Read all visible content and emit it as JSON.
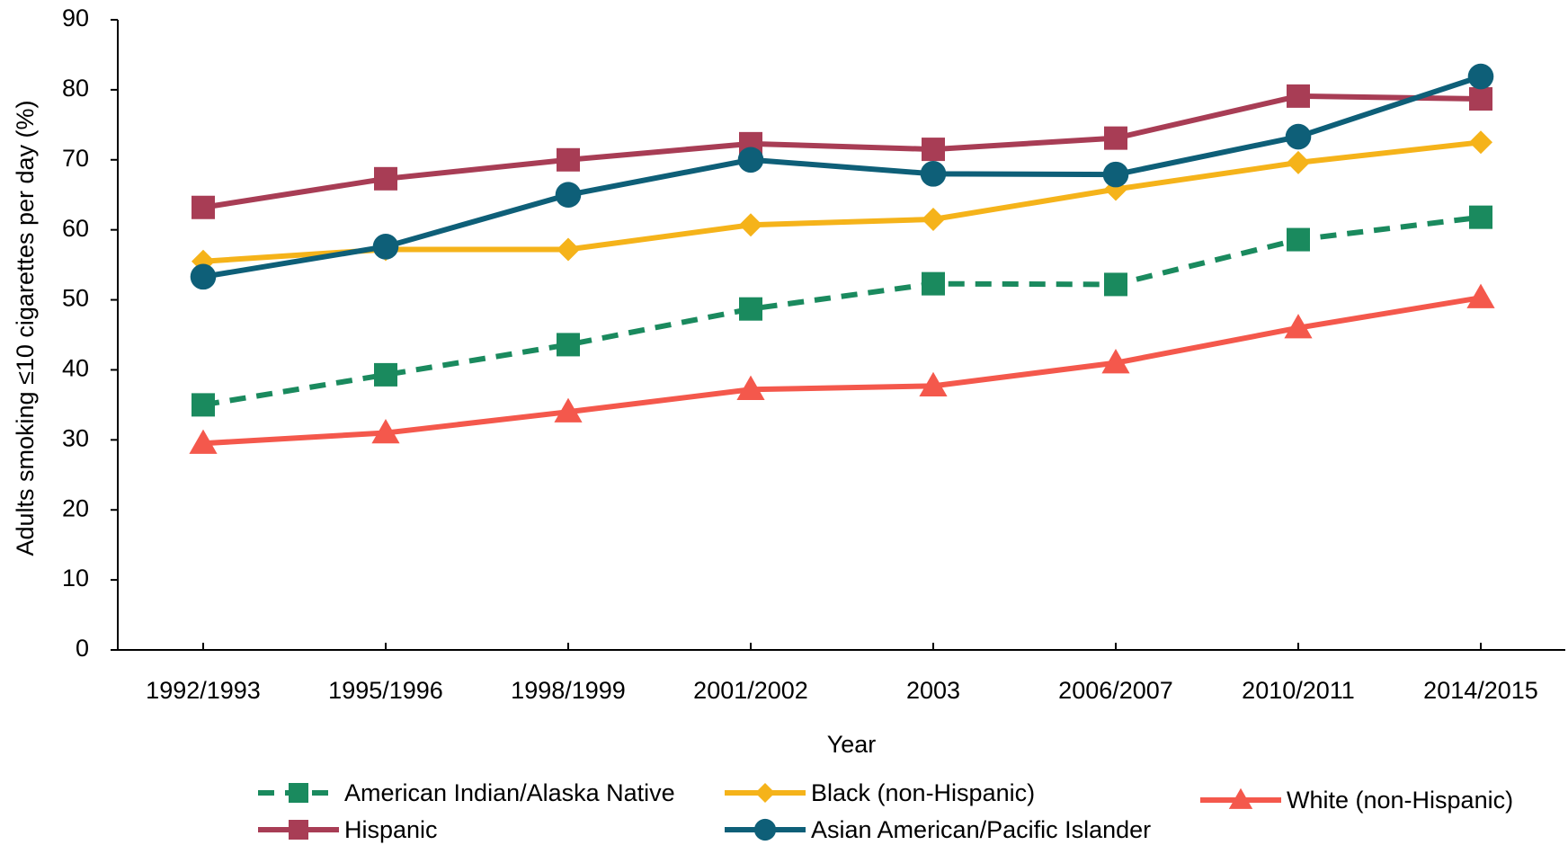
{
  "chart_data": {
    "type": "line",
    "y_label": "Adults smoking  ≤10 cigarettes per day (%)",
    "x_label": "Year",
    "categories": [
      "1992/1993",
      "1995/1996",
      "1998/1999",
      "2001/2002",
      "2003",
      "2006/2007",
      "2010/2011",
      "2014/2015"
    ],
    "ylim": [
      0,
      90
    ],
    "yticks": [
      0,
      10,
      20,
      30,
      40,
      50,
      60,
      70,
      80,
      90
    ],
    "series": [
      {
        "name": "American Indian/Alaska Native",
        "color": "#1a8a5e",
        "marker": "square",
        "dashed": true,
        "values": [
          35,
          39.3,
          43.6,
          48.7,
          52.3,
          52.2,
          58.6,
          61.8
        ]
      },
      {
        "name": "Black (non-Hispanic)",
        "color": "#f5b31a",
        "marker": "diamond",
        "dashed": false,
        "values": [
          55.5,
          57.2,
          57.2,
          60.7,
          61.5,
          65.8,
          69.6,
          72.5
        ]
      },
      {
        "name": "White (non-Hispanic)",
        "color": "#f4584c",
        "marker": "triangle",
        "dashed": false,
        "values": [
          29.5,
          31,
          34,
          37.2,
          37.7,
          41,
          46,
          50.3
        ]
      },
      {
        "name": "Hispanic",
        "color": "#a83d55",
        "marker": "square",
        "dashed": false,
        "values": [
          63.2,
          67.3,
          70,
          72.3,
          71.5,
          73.1,
          79.1,
          78.7
        ]
      },
      {
        "name": "Asian American/Pacific Islander",
        "color": "#0e5f78",
        "marker": "circle",
        "dashed": false,
        "values": [
          53.3,
          57.6,
          65,
          70,
          68,
          67.9,
          73.3,
          81.9
        ]
      }
    ]
  }
}
